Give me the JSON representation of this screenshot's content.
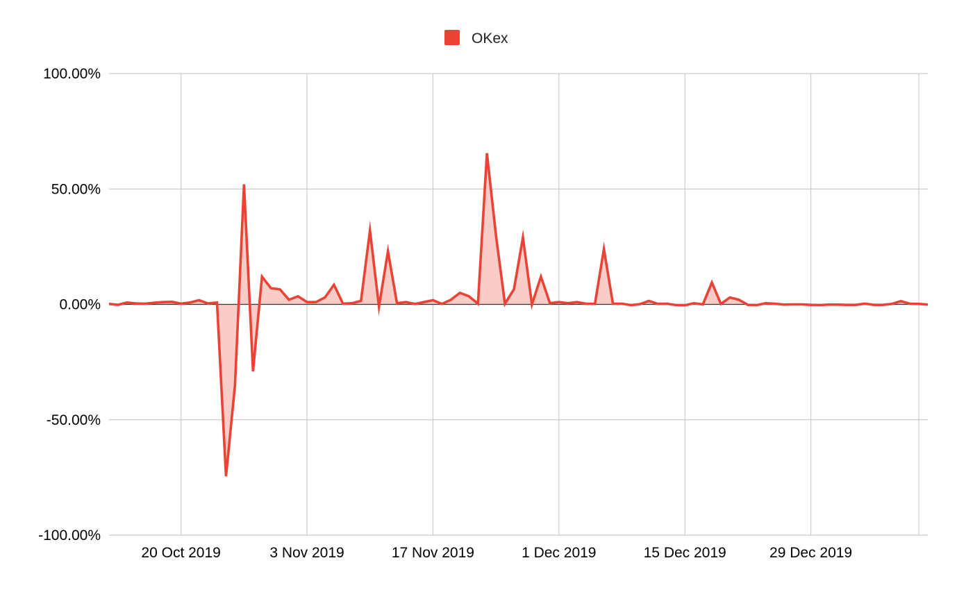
{
  "chart_data": {
    "type": "area",
    "title": "",
    "xlabel": "",
    "ylabel": "",
    "legend_position": "top",
    "grid": true,
    "ylim": [
      -1.0,
      1.0
    ],
    "y_tick_values": [
      -1.0,
      -0.5,
      0.0,
      0.5,
      1.0
    ],
    "y_tick_labels": [
      "-100.00%",
      "-50.00%",
      "0.00%",
      "50.00%",
      "100.00%"
    ],
    "x_range": [
      "2019-10-12",
      "2020-01-11"
    ],
    "x_tick_values": [
      "2019-10-20",
      "2019-11-03",
      "2019-11-17",
      "2019-12-01",
      "2019-12-15",
      "2019-12-29"
    ],
    "x_tick_labels": [
      "20 Oct 2019",
      "3 Nov 2019",
      "17 Nov 2019",
      "1 Dec 2019",
      "15 Dec 2019",
      "29 Dec 2019"
    ],
    "series": [
      {
        "name": "OKex",
        "color": "#ea4335",
        "fill_color": "#f9c9c5",
        "x": [
          "2019-10-12",
          "2019-10-13",
          "2019-10-14",
          "2019-10-15",
          "2019-10-16",
          "2019-10-17",
          "2019-10-18",
          "2019-10-19",
          "2019-10-20",
          "2019-10-21",
          "2019-10-22",
          "2019-10-23",
          "2019-10-24",
          "2019-10-25",
          "2019-10-26",
          "2019-10-27",
          "2019-10-28",
          "2019-10-29",
          "2019-10-30",
          "2019-10-31",
          "2019-11-01",
          "2019-11-02",
          "2019-11-03",
          "2019-11-04",
          "2019-11-05",
          "2019-11-06",
          "2019-11-07",
          "2019-11-08",
          "2019-11-09",
          "2019-11-10",
          "2019-11-11",
          "2019-11-12",
          "2019-11-13",
          "2019-11-14",
          "2019-11-15",
          "2019-11-16",
          "2019-11-17",
          "2019-11-18",
          "2019-11-19",
          "2019-11-20",
          "2019-11-21",
          "2019-11-22",
          "2019-11-23",
          "2019-11-24",
          "2019-11-25",
          "2019-11-26",
          "2019-11-27",
          "2019-11-28",
          "2019-11-29",
          "2019-11-30",
          "2019-12-01",
          "2019-12-02",
          "2019-12-03",
          "2019-12-04",
          "2019-12-05",
          "2019-12-06",
          "2019-12-07",
          "2019-12-08",
          "2019-12-09",
          "2019-12-10",
          "2019-12-11",
          "2019-12-12",
          "2019-12-13",
          "2019-12-14",
          "2019-12-15",
          "2019-12-16",
          "2019-12-17",
          "2019-12-18",
          "2019-12-19",
          "2019-12-20",
          "2019-12-21",
          "2019-12-22",
          "2019-12-23",
          "2019-12-24",
          "2019-12-25",
          "2019-12-26",
          "2019-12-27",
          "2019-12-28",
          "2019-12-29",
          "2019-12-30",
          "2019-12-31",
          "2020-01-01",
          "2020-01-02",
          "2020-01-03",
          "2020-01-04",
          "2020-01-05",
          "2020-01-06",
          "2020-01-07",
          "2020-01-08",
          "2020-01-09",
          "2020-01-10",
          "2020-01-11"
        ],
        "values": [
          0.002,
          -0.002,
          0.008,
          0.004,
          0.003,
          0.007,
          0.01,
          0.011,
          0.003,
          0.008,
          0.018,
          0.004,
          0.008,
          -0.745,
          -0.35,
          0.52,
          -0.29,
          0.12,
          0.07,
          0.065,
          0.02,
          0.035,
          0.01,
          0.01,
          0.03,
          0.085,
          0.003,
          0.005,
          0.015,
          0.32,
          -0.01,
          0.23,
          0.005,
          0.01,
          0.002,
          0.01,
          0.018,
          0.002,
          0.02,
          0.05,
          0.035,
          0.003,
          0.655,
          0.3,
          0.003,
          0.065,
          0.29,
          0.0,
          0.12,
          0.005,
          0.01,
          0.005,
          0.01,
          0.003,
          0.002,
          0.24,
          0.003,
          0.003,
          -0.003,
          0.001,
          0.015,
          0.002,
          0.003,
          -0.003,
          -0.004,
          0.005,
          0.0,
          0.095,
          0.002,
          0.03,
          0.02,
          -0.002,
          -0.003,
          0.005,
          0.003,
          -0.001,
          0.0,
          0.0,
          -0.002,
          -0.003,
          -0.001,
          -0.001,
          -0.002,
          -0.002,
          0.003,
          -0.002,
          -0.002,
          0.002,
          0.014,
          0.003,
          0.002,
          -0.001
        ]
      }
    ]
  }
}
